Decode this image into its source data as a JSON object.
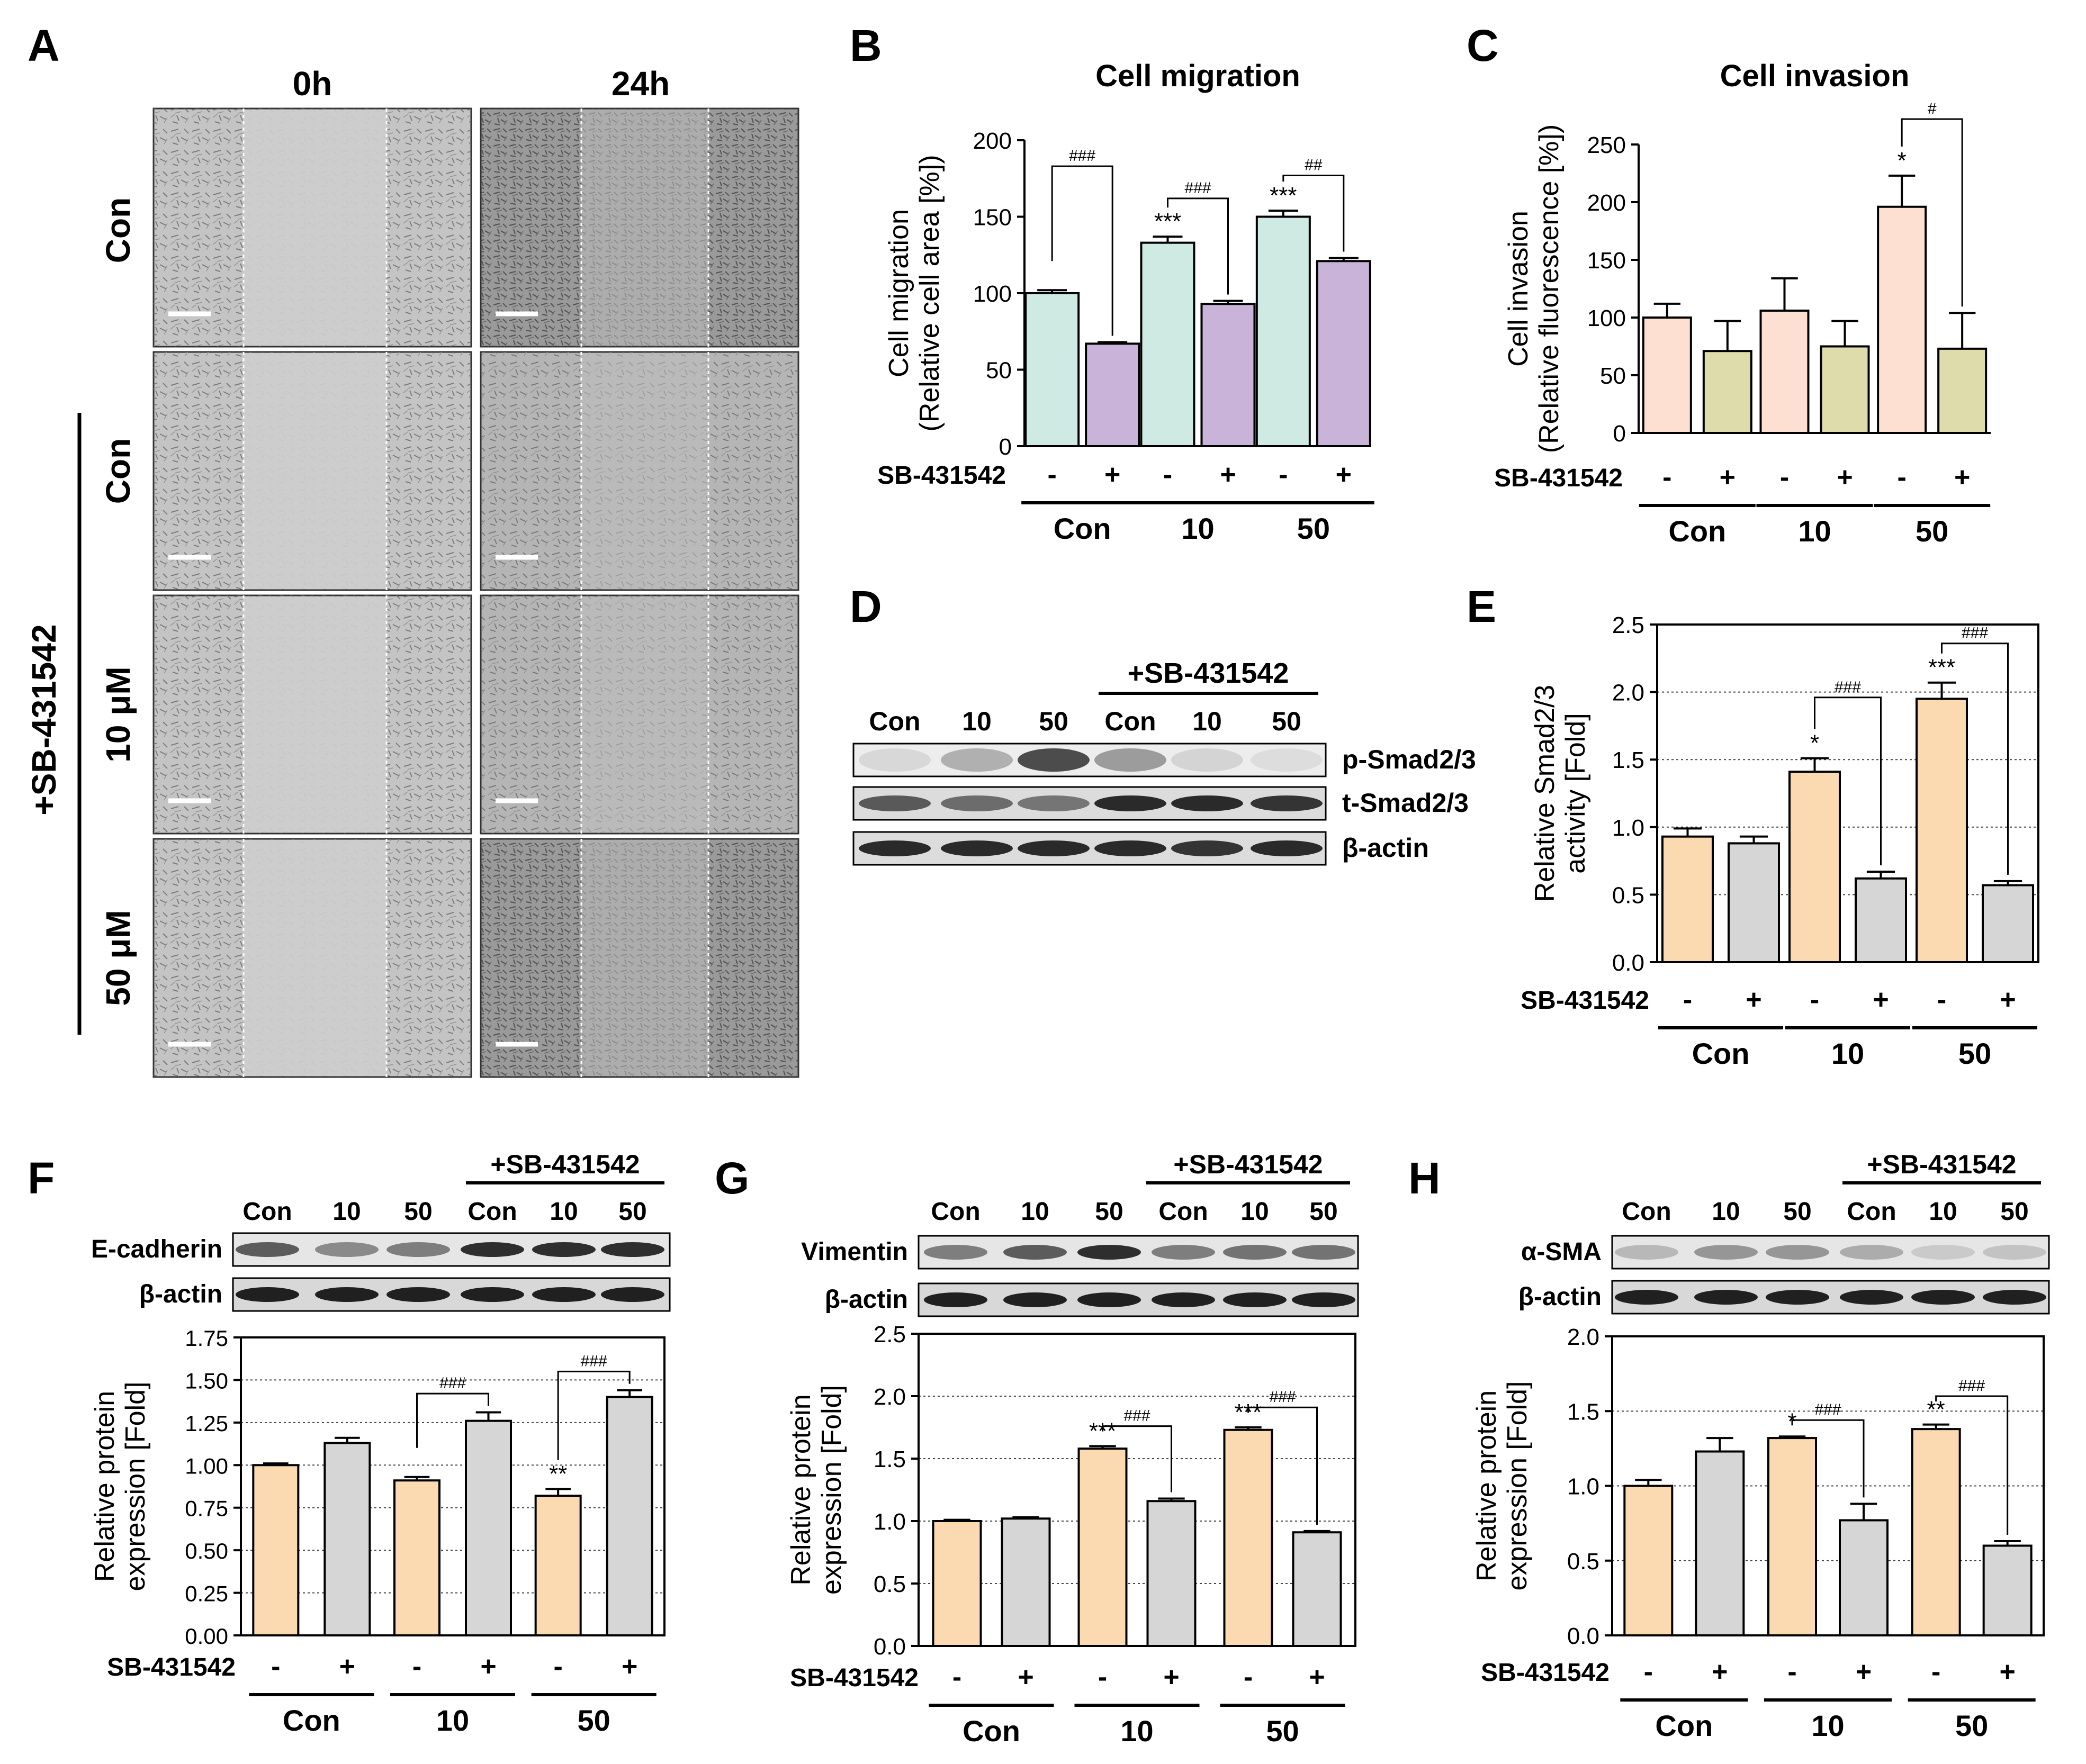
{
  "figure": {
    "panel_letters": [
      "A",
      "B",
      "C",
      "D",
      "E",
      "F",
      "G",
      "H"
    ]
  },
  "panelA": {
    "columns": [
      "0h",
      "24h"
    ],
    "rows": [
      "Con",
      "Con",
      "10 μM",
      "50 μM"
    ],
    "group_label": "+SB-431542"
  },
  "panelD": {
    "lanes": [
      "Con",
      "10",
      "50",
      "Con",
      "10",
      "50"
    ],
    "group_label": "+SB-431542",
    "blots": [
      "p-Smad2/3",
      "t-Smad2/3",
      "β-actin"
    ]
  },
  "blots": {
    "F": {
      "lanes": [
        "Con",
        "10",
        "50",
        "Con",
        "10",
        "50"
      ],
      "group_label": "+SB-431542",
      "rows": [
        "E-cadherin",
        "β-actin"
      ]
    },
    "G": {
      "lanes": [
        "Con",
        "10",
        "50",
        "Con",
        "10",
        "50"
      ],
      "group_label": "+SB-431542",
      "rows": [
        "Vimentin",
        "β-actin"
      ]
    },
    "H": {
      "lanes": [
        "Con",
        "10",
        "50",
        "Con",
        "10",
        "50"
      ],
      "group_label": "+SB-431542",
      "rows": [
        "α-SMA",
        "β-actin"
      ]
    }
  },
  "colors": {
    "B_minus": "#cfeae2",
    "B_plus": "#c9b3d9",
    "C_minus": "#fde0d2",
    "C_plus": "#dedcab",
    "orange": "#fbd9b1",
    "gray": "#d6d6d6"
  },
  "chart_data": [
    {
      "id": "B",
      "type": "bar",
      "title": "Cell migration",
      "ylabel": [
        "Cell migration",
        "(Relative cell area [%])"
      ],
      "ylim": [
        0,
        200
      ],
      "yticks": [
        "0",
        "50",
        "100",
        "150",
        "200"
      ],
      "ytick_values": [
        0,
        50,
        100,
        150,
        200
      ],
      "grid": false,
      "treatment_label": "SB-431542",
      "treatment_marks": [
        "-",
        "+"
      ],
      "groups": [
        "Con",
        "10",
        "50"
      ],
      "series": [
        {
          "name": "-",
          "values": [
            100,
            133,
            150
          ],
          "errors": [
            2,
            4,
            4
          ]
        },
        {
          "name": "+",
          "values": [
            67,
            93,
            121
          ],
          "errors": [
            1,
            2,
            2
          ]
        }
      ],
      "annotations": [
        {
          "group": 0,
          "bar": 0,
          "text": ""
        },
        {
          "group": 1,
          "bar": 0,
          "text": "***"
        },
        {
          "group": 2,
          "bar": 0,
          "text": "***"
        }
      ],
      "brackets": [
        {
          "group": 0,
          "text": "###",
          "top": 183
        },
        {
          "group": 1,
          "text": "###",
          "top": 162
        },
        {
          "group": 2,
          "text": "##",
          "top": 177
        }
      ]
    },
    {
      "id": "C",
      "type": "bar",
      "title": "Cell invasion",
      "ylabel": [
        "Cell invasion",
        "(Relative fluorescence [%])"
      ],
      "ylim": [
        0,
        250
      ],
      "yticks": [
        "0",
        "50",
        "100",
        "150",
        "200",
        "250"
      ],
      "ytick_values": [
        0,
        50,
        100,
        150,
        200,
        250
      ],
      "grid": false,
      "treatment_label": "SB-431542",
      "treatment_marks": [
        "-",
        "+"
      ],
      "groups": [
        "Con",
        "10",
        "50"
      ],
      "series": [
        {
          "name": "-",
          "values": [
            100,
            106,
            196
          ],
          "errors": [
            12,
            28,
            27
          ]
        },
        {
          "name": "+",
          "values": [
            71,
            75,
            73
          ],
          "errors": [
            26,
            22,
            31
          ]
        }
      ],
      "annotations": [
        {
          "group": 2,
          "bar": 0,
          "text": "*"
        }
      ],
      "brackets": [
        {
          "group": 2,
          "text": "#",
          "top": 272
        }
      ]
    },
    {
      "id": "E",
      "type": "bar",
      "title": "",
      "ylabel": [
        "Relative Smad2/3",
        "activity [Fold]"
      ],
      "ylim": [
        0,
        2.5
      ],
      "yticks": [
        "0.0",
        "0.5",
        "1.0",
        "1.5",
        "2.0",
        "2.5"
      ],
      "ytick_values": [
        0,
        0.5,
        1.0,
        1.5,
        2.0,
        2.5
      ],
      "grid": true,
      "treatment_label": "SB-431542",
      "treatment_marks": [
        "-",
        "+"
      ],
      "groups": [
        "Con",
        "10",
        "50"
      ],
      "series": [
        {
          "name": "-",
          "values": [
            0.93,
            1.41,
            1.95
          ],
          "errors": [
            0.06,
            0.1,
            0.12
          ]
        },
        {
          "name": "+",
          "values": [
            0.88,
            0.62,
            0.57
          ],
          "errors": [
            0.05,
            0.05,
            0.03
          ]
        }
      ],
      "annotations": [
        {
          "group": 1,
          "bar": 0,
          "text": "*"
        },
        {
          "group": 2,
          "bar": 0,
          "text": "***"
        }
      ],
      "brackets": [
        {
          "group": 1,
          "text": "###",
          "top": 1.96
        },
        {
          "group": 2,
          "text": "###",
          "top": 2.36
        }
      ]
    },
    {
      "id": "F",
      "type": "bar",
      "title": "",
      "ylabel": [
        "Relative protein",
        "expression [Fold]"
      ],
      "ylim": [
        0,
        1.75
      ],
      "yticks": [
        "0.00",
        "0.25",
        "0.50",
        "0.75",
        "1.00",
        "1.25",
        "1.50",
        "1.75"
      ],
      "ytick_values": [
        0,
        0.25,
        0.5,
        0.75,
        1.0,
        1.25,
        1.5,
        1.75
      ],
      "grid": true,
      "treatment_label": "SB-431542",
      "treatment_marks": [
        "-",
        "+"
      ],
      "groups": [
        "Con",
        "10",
        "50"
      ],
      "series": [
        {
          "name": "-",
          "values": [
            1.0,
            0.91,
            0.82
          ],
          "errors": [
            0.01,
            0.02,
            0.04
          ]
        },
        {
          "name": "+",
          "values": [
            1.13,
            1.26,
            1.4
          ],
          "errors": [
            0.03,
            0.05,
            0.04
          ]
        }
      ],
      "annotations": [
        {
          "group": 2,
          "bar": 0,
          "text": "**"
        }
      ],
      "brackets": [
        {
          "group": 1,
          "text": "###",
          "top": 1.42,
          "left_top": 1.42
        },
        {
          "group": 2,
          "text": "###",
          "top": 1.55
        }
      ]
    },
    {
      "id": "G",
      "type": "bar",
      "title": "",
      "ylabel": [
        "Relative protein",
        "expression [Fold]"
      ],
      "ylim": [
        0,
        2.5
      ],
      "yticks": [
        "0.0",
        "0.5",
        "1.0",
        "1.5",
        "2.0",
        "2.5"
      ],
      "ytick_values": [
        0,
        0.5,
        1.0,
        1.5,
        2.0,
        2.5
      ],
      "grid": true,
      "treatment_label": "SB-431542",
      "treatment_marks": [
        "-",
        "+"
      ],
      "groups": [
        "Con",
        "10",
        "50"
      ],
      "series": [
        {
          "name": "-",
          "values": [
            1.0,
            1.58,
            1.73
          ],
          "errors": [
            0.01,
            0.02,
            0.02
          ]
        },
        {
          "name": "+",
          "values": [
            1.02,
            1.16,
            0.91
          ],
          "errors": [
            0.01,
            0.02,
            0.01
          ]
        }
      ],
      "annotations": [
        {
          "group": 1,
          "bar": 0,
          "text": "***"
        },
        {
          "group": 2,
          "bar": 0,
          "text": "***"
        }
      ],
      "brackets": [
        {
          "group": 1,
          "text": "###",
          "top": 1.76
        },
        {
          "group": 2,
          "text": "###",
          "top": 1.91
        }
      ]
    },
    {
      "id": "H",
      "type": "bar",
      "title": "",
      "ylabel": [
        "Relative protein",
        "expression [Fold]"
      ],
      "ylim": [
        0,
        2.0
      ],
      "yticks": [
        "0.0",
        "0.5",
        "1.0",
        "1.5",
        "2.0"
      ],
      "ytick_values": [
        0,
        0.5,
        1.0,
        1.5,
        2.0
      ],
      "grid": true,
      "treatment_label": "SB-431542",
      "treatment_marks": [
        "-",
        "+"
      ],
      "groups": [
        "Con",
        "10",
        "50"
      ],
      "series": [
        {
          "name": "-",
          "values": [
            1.0,
            1.32,
            1.38
          ],
          "errors": [
            0.04,
            0.01,
            0.03
          ]
        },
        {
          "name": "+",
          "values": [
            1.23,
            0.77,
            0.6
          ],
          "errors": [
            0.09,
            0.11,
            0.03
          ]
        }
      ],
      "annotations": [
        {
          "group": 1,
          "bar": 0,
          "text": "*"
        },
        {
          "group": 2,
          "bar": 0,
          "text": "**"
        }
      ],
      "brackets": [
        {
          "group": 1,
          "text": "###",
          "top": 1.44
        },
        {
          "group": 2,
          "text": "###",
          "top": 1.6
        }
      ]
    }
  ]
}
